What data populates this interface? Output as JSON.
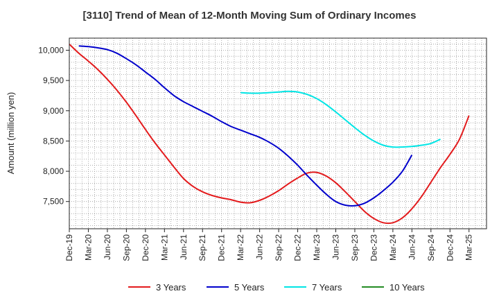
{
  "chart_data": {
    "type": "line",
    "title": "[3110]  Trend of Mean of 12-Month Moving Sum of Ordinary Incomes",
    "xlabel": "",
    "ylabel": "Amount (million yen)",
    "ylim": [
      7050,
      10200
    ],
    "y_ticks": [
      7500,
      8000,
      8500,
      9000,
      9500,
      10000
    ],
    "y_tick_labels": [
      "7,500",
      "8,000",
      "8,500",
      "9,000",
      "9,500",
      "10,000"
    ],
    "x_tick_labels": [
      "Dec-19",
      "Mar-20",
      "Jun-20",
      "Sep-20",
      "Dec-20",
      "Mar-21",
      "Jun-21",
      "Sep-21",
      "Dec-21",
      "Mar-22",
      "Jun-22",
      "Sep-22",
      "Dec-22",
      "Mar-23",
      "Jun-23",
      "Sep-23",
      "Dec-23",
      "Mar-24",
      "Jun-24",
      "Sep-24",
      "Dec-24",
      "Mar-25"
    ],
    "grid": true,
    "legend_position": "bottom",
    "series": [
      {
        "name": "3 Years",
        "color": "#e31a1c",
        "points": [
          [
            0,
            10100
          ],
          [
            1,
            9950
          ],
          [
            2,
            9820
          ],
          [
            3,
            9680
          ],
          [
            4,
            9520
          ],
          [
            5,
            9340
          ],
          [
            6,
            9140
          ],
          [
            7,
            8920
          ],
          [
            8,
            8690
          ],
          [
            9,
            8470
          ],
          [
            10,
            8270
          ],
          [
            11,
            8070
          ],
          [
            12,
            7880
          ],
          [
            13,
            7750
          ],
          [
            14,
            7660
          ],
          [
            15,
            7600
          ],
          [
            16,
            7560
          ],
          [
            17,
            7530
          ],
          [
            18,
            7490
          ],
          [
            19,
            7480
          ],
          [
            20,
            7520
          ],
          [
            21,
            7590
          ],
          [
            22,
            7680
          ],
          [
            23,
            7790
          ],
          [
            24,
            7890
          ],
          [
            25,
            7970
          ],
          [
            26,
            7980
          ],
          [
            27,
            7920
          ],
          [
            28,
            7810
          ],
          [
            29,
            7660
          ],
          [
            30,
            7500
          ],
          [
            31,
            7340
          ],
          [
            32,
            7220
          ],
          [
            33,
            7150
          ],
          [
            34,
            7150
          ],
          [
            35,
            7230
          ],
          [
            36,
            7380
          ],
          [
            37,
            7580
          ],
          [
            38,
            7820
          ],
          [
            39,
            8060
          ],
          [
            40,
            8280
          ],
          [
            41,
            8530
          ],
          [
            42,
            8920
          ]
        ]
      },
      {
        "name": "5 Years",
        "color": "#0000cc",
        "points": [
          [
            1,
            10070
          ],
          [
            2,
            10060
          ],
          [
            3,
            10040
          ],
          [
            4,
            10010
          ],
          [
            5,
            9950
          ],
          [
            6,
            9860
          ],
          [
            7,
            9760
          ],
          [
            8,
            9640
          ],
          [
            9,
            9520
          ],
          [
            10,
            9380
          ],
          [
            11,
            9250
          ],
          [
            12,
            9150
          ],
          [
            13,
            9070
          ],
          [
            14,
            8990
          ],
          [
            15,
            8910
          ],
          [
            16,
            8820
          ],
          [
            17,
            8740
          ],
          [
            18,
            8680
          ],
          [
            19,
            8620
          ],
          [
            20,
            8560
          ],
          [
            21,
            8480
          ],
          [
            22,
            8380
          ],
          [
            23,
            8250
          ],
          [
            24,
            8100
          ],
          [
            25,
            7930
          ],
          [
            26,
            7770
          ],
          [
            27,
            7620
          ],
          [
            28,
            7500
          ],
          [
            29,
            7440
          ],
          [
            30,
            7430
          ],
          [
            31,
            7470
          ],
          [
            32,
            7560
          ],
          [
            33,
            7680
          ],
          [
            34,
            7820
          ],
          [
            35,
            8000
          ],
          [
            36,
            8270
          ]
        ]
      },
      {
        "name": "7 Years",
        "color": "#00e5e5",
        "points": [
          [
            18,
            9300
          ],
          [
            19,
            9290
          ],
          [
            20,
            9290
          ],
          [
            21,
            9300
          ],
          [
            22,
            9310
          ],
          [
            23,
            9320
          ],
          [
            24,
            9310
          ],
          [
            25,
            9270
          ],
          [
            26,
            9200
          ],
          [
            27,
            9100
          ],
          [
            28,
            8980
          ],
          [
            29,
            8850
          ],
          [
            30,
            8720
          ],
          [
            31,
            8600
          ],
          [
            32,
            8500
          ],
          [
            33,
            8430
          ],
          [
            34,
            8400
          ],
          [
            35,
            8400
          ],
          [
            36,
            8410
          ],
          [
            37,
            8430
          ],
          [
            38,
            8460
          ],
          [
            39,
            8530
          ]
        ]
      },
      {
        "name": "10 Years",
        "color": "#228b22",
        "points": []
      }
    ]
  }
}
